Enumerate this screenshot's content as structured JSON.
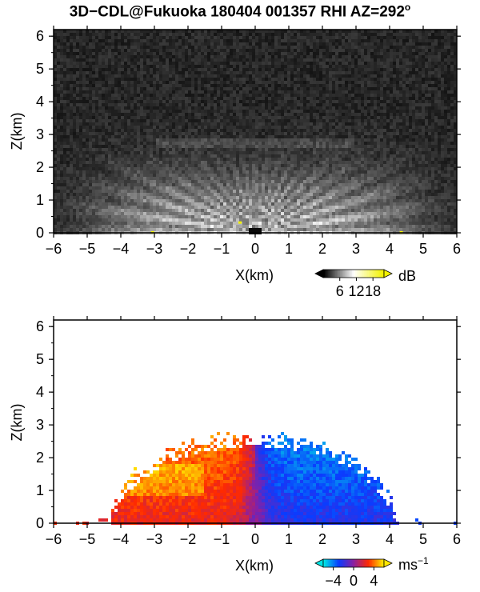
{
  "title": {
    "main": "3D−CDL@Fukuoka 180404 001357 RHI AZ=292",
    "deg": "o"
  },
  "chart_data": [
    {
      "type": "heatmap",
      "name": "backscatter-panel",
      "xlabel": "X(km)",
      "ylabel": "Z(km)",
      "xlim": [
        -6,
        6
      ],
      "ylim": [
        0,
        6.2
      ],
      "xticks": [
        -6,
        -5,
        -4,
        -3,
        -2,
        -1,
        0,
        1,
        2,
        3,
        4,
        5,
        6
      ],
      "yticks": [
        0,
        1,
        2,
        3,
        4,
        5,
        6
      ],
      "colorbar": {
        "unit": "dB",
        "ticks": [
          6,
          12,
          18
        ],
        "range": [
          0,
          22
        ],
        "colors": [
          "#000000",
          "#ffffff",
          "#f2f200"
        ]
      },
      "field": {
        "bright_core_height_km": 2.2,
        "bright_core_halfwidth_km": 4.8,
        "enhanced_layer_km": [
          2.6,
          2.9
        ],
        "background": "noise"
      }
    },
    {
      "type": "heatmap",
      "name": "doppler-velocity-panel",
      "xlabel": "X(km)",
      "ylabel": "Z(km)",
      "xlim": [
        -6,
        6
      ],
      "ylim": [
        0,
        6.2
      ],
      "xticks": [
        -6,
        -5,
        -4,
        -3,
        -2,
        -1,
        0,
        1,
        2,
        3,
        4,
        5,
        6
      ],
      "yticks": [
        0,
        1,
        2,
        3,
        4,
        5,
        6
      ],
      "colorbar": {
        "unit": "ms",
        "unit_exp": "−1",
        "ticks": [
          "−4",
          "0",
          "4"
        ],
        "range": [
          -6,
          6
        ],
        "colors": [
          "#00e5e5",
          "#0a3cff",
          "#8b1fa0",
          "#ff2a00",
          "#ffe800"
        ]
      },
      "field": {
        "echo_top_km": 2.7,
        "left_edge_km": -4.3,
        "right_edge_km": 4.2,
        "negative_velocity_side": "x>0",
        "positive_velocity_side": "x<0"
      }
    }
  ]
}
